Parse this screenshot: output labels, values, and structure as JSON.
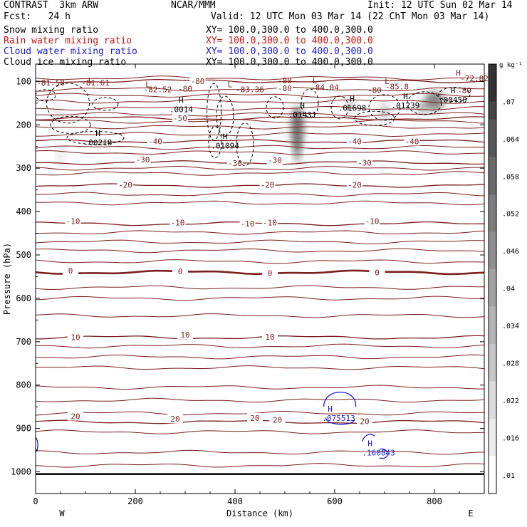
{
  "header": {
    "title_left": "CONTRAST  3km ARW",
    "center": "NCAR/MMM",
    "init": "Init: 12 UTC Sun 02 Mar 14",
    "fcst": "Fcst:   24 h",
    "valid": "Valid: 12 UTC Mon 03 Mar 14 (22 ChT Mon 03 Mar 14)"
  },
  "legend": [
    {
      "name": "Snow mixing ratio",
      "xy": "XY= 100.0,300.0 to 400.0,300.0",
      "color": "#000000"
    },
    {
      "name": "Rain water mixing ratio",
      "xy": "XY= 100.0,300.0 to 400.0,300.0",
      "color": "#d01010"
    },
    {
      "name": "Cloud water mixing ratio",
      "xy": "XY= 100.0,300.0 to 400.0,300.0",
      "color": "#1a1adc"
    },
    {
      "name": "Cloud ice mixing ratio",
      "xy": "XY= 100.0,300.0 to 400.0,300.0",
      "color": "#000000"
    }
  ],
  "chart_data": {
    "type": "cross-section",
    "xlabel": "Distance (km)",
    "ylabel": "Pressure (hPa)",
    "xlim": [
      0,
      900
    ],
    "ylim": [
      1050,
      60
    ],
    "x_ticks": [
      0,
      200,
      400,
      600,
      800
    ],
    "y_ticks": [
      100,
      200,
      300,
      400,
      500,
      600,
      700,
      800,
      900,
      1000
    ],
    "west_label": "W",
    "east_label": "E",
    "colorbar": {
      "unit": "g kg⁻¹",
      "ticks": [
        ".01",
        ".016",
        ".022",
        ".028",
        ".034",
        ".04",
        ".046",
        ".052",
        ".058",
        ".064",
        ".07"
      ]
    },
    "temperature_contours": [
      {
        "label": "-80",
        "p": 99,
        "labels": [
          [
            325,
            99
          ],
          [
            500,
            116
          ]
        ],
        "color": "#7a1e1e"
      },
      {
        "label": "-50",
        "p": 185,
        "labels": [
          [
            290,
            185
          ]
        ],
        "color": "#7a1e1e"
      },
      {
        "label": "-40",
        "p": 238,
        "labels": [
          [
            240,
            238
          ],
          [
            640,
            238
          ],
          [
            755,
            238
          ]
        ],
        "color": "#7a1e1e"
      },
      {
        "label": "-30",
        "p": 287,
        "labels": [
          [
            215,
            280
          ],
          [
            400,
            288
          ],
          [
            480,
            282
          ],
          [
            660,
            287
          ]
        ],
        "color": "#7a1e1e"
      },
      {
        "label": "-20",
        "p": 340,
        "labels": [
          [
            180,
            338
          ],
          [
            465,
            338
          ],
          [
            640,
            338
          ]
        ],
        "color": "#7a1e1e"
      },
      {
        "label": "-10",
        "p": 428,
        "labels": [
          [
            75,
            422
          ],
          [
            285,
            425
          ],
          [
            425,
            428
          ],
          [
            470,
            425
          ],
          [
            675,
            422
          ]
        ],
        "color": "#7a1e1e"
      },
      {
        "label": "0",
        "p": 540,
        "labels": [
          [
            70,
            536
          ],
          [
            290,
            538
          ],
          [
            470,
            542
          ],
          [
            685,
            540
          ]
        ],
        "color": "#7a1e1e"
      },
      {
        "label": "10",
        "p": 690,
        "labels": [
          [
            80,
            690
          ],
          [
            300,
            684
          ],
          [
            470,
            689
          ]
        ],
        "color": "#7a1e1e"
      },
      {
        "label": "20",
        "p": 885,
        "labels": [
          [
            80,
            872
          ],
          [
            280,
            878
          ],
          [
            440,
            876
          ],
          [
            485,
            880
          ],
          [
            660,
            883
          ]
        ],
        "color": "#7a1e1e"
      }
    ],
    "min_labels": [
      {
        "text": "L",
        "x": 110,
        "p": 98
      },
      {
        "text": "-81.58",
        "x": 30,
        "p": 103
      },
      {
        "text": "-81.61",
        "x": 120,
        "p": 103
      },
      {
        "text": "L",
        "x": 225,
        "p": 107
      },
      {
        "text": "-82.52",
        "x": 245,
        "p": 118
      },
      {
        "text": "-80",
        "x": 300,
        "p": 117
      },
      {
        "text": "L",
        "x": 390,
        "p": 107
      },
      {
        "text": "-83.36",
        "x": 430,
        "p": 118
      },
      {
        "text": "-80",
        "x": 500,
        "p": 98
      },
      {
        "text": "L",
        "x": 560,
        "p": 98
      },
      {
        "text": "-84.04",
        "x": 580,
        "p": 113
      },
      {
        "text": "-80",
        "x": 680,
        "p": 120
      },
      {
        "text": "L",
        "x": 705,
        "p": 99
      },
      {
        "text": "-85.8",
        "x": 725,
        "p": 112
      },
      {
        "text": "H",
        "x": 848,
        "p": 80
      },
      {
        "text": "-72.82",
        "x": 880,
        "p": 93
      },
      {
        "text": "-80",
        "x": 860,
        "p": 121
      }
    ],
    "ice_max_labels": [
      {
        "name": "H",
        "value": ".00218",
        "x": 125,
        "p": 236
      },
      {
        "name": "H",
        "value": ".0014",
        "x": 292,
        "p": 159
      },
      {
        "name": "H",
        "value": ".01094",
        "x": 380,
        "p": 243
      },
      {
        "name": "H",
        "value": ".01431",
        "x": 535,
        "p": 172
      },
      {
        "name": "H",
        "value": ".01698",
        "x": 635,
        "p": 156
      },
      {
        "name": "H",
        "value": ".01239",
        "x": 742,
        "p": 150
      },
      {
        "name": "H",
        "value": ".00450",
        "x": 837,
        "p": 137
      }
    ],
    "cloud_water_max_labels": [
      {
        "name": "H",
        "value": ".075513",
        "x": 608,
        "p": 878
      },
      {
        "name": "H",
        "value": ".160843",
        "x": 688,
        "p": 957
      }
    ]
  }
}
